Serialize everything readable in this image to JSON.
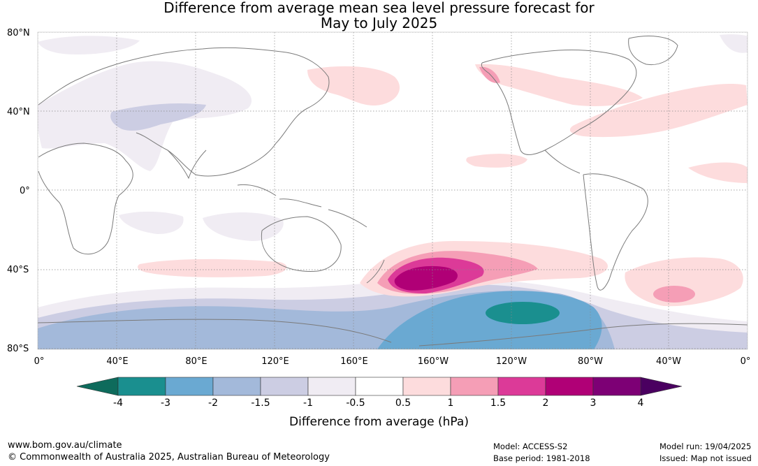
{
  "title": {
    "line1": "Difference from average mean sea level pressure forecast for",
    "line2": "May to July 2025"
  },
  "map": {
    "lat_labels": [
      "80°N",
      "40°N",
      "0°",
      "40°S",
      "80°S"
    ],
    "lon_labels": [
      "0°",
      "40°E",
      "80°E",
      "120°E",
      "160°E",
      "160°W",
      "120°W",
      "80°W",
      "40°W",
      "0°"
    ],
    "description_colors": {
      "land_outline": "#7a7a7a",
      "grid": "#888888"
    }
  },
  "colorbar": {
    "ticks": [
      "-4",
      "-3",
      "-2",
      "-1.5",
      "-1",
      "-0.5",
      "0.5",
      "1",
      "1.5",
      "2",
      "3",
      "4"
    ],
    "colors": [
      "#1a8f8f",
      "#6aa9d2",
      "#a3b9da",
      "#cccde3",
      "#f0ecf3",
      "#ffffff",
      "#fddcdd",
      "#f59eb6",
      "#dc3a98",
      "#b00076",
      "#7d0075"
    ],
    "low_extend_color": "#0e6b5c",
    "high_extend_color": "#4a0060",
    "title": "Difference from average (hPa)"
  },
  "footer": {
    "url": "www.bom.gov.au/climate",
    "copyright": "© Commonwealth of Australia 2025, Australian Bureau of Meteorology",
    "model": "Model: ACCESS-S2",
    "base_period": "Base period: 1981-2018",
    "model_run": "Model run: 19/04/2025",
    "issued": "Issued: Map not issued"
  }
}
